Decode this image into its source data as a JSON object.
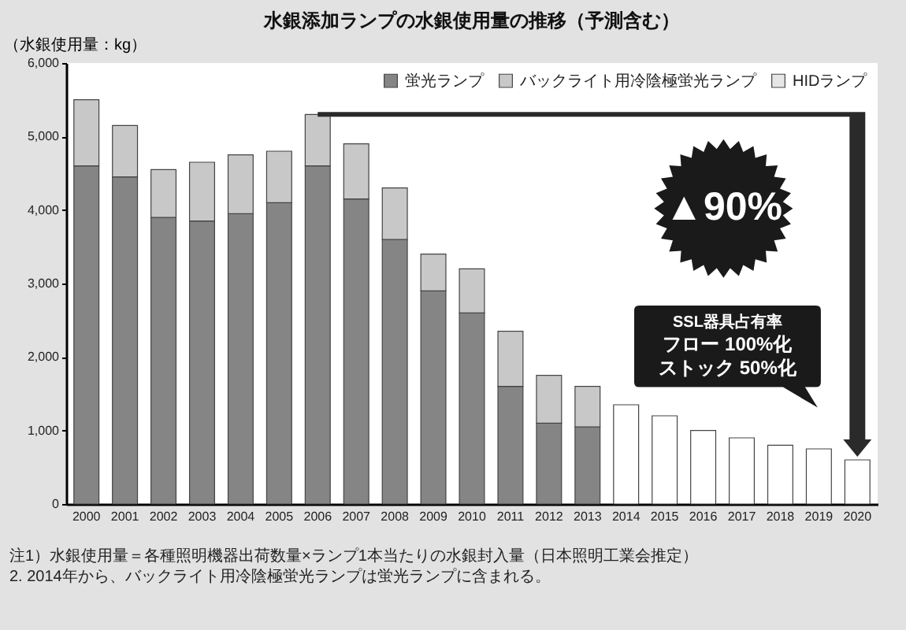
{
  "chart_data": {
    "type": "bar",
    "title": "水銀添加ランプの水銀使用量の推移（予測含む）",
    "ylabel": "（水銀使用量：kg）",
    "categories": [
      "2000",
      "2001",
      "2002",
      "2003",
      "2004",
      "2005",
      "2006",
      "2007",
      "2008",
      "2009",
      "2010",
      "2011",
      "2012",
      "2013",
      "2014",
      "2015",
      "2016",
      "2017",
      "2018",
      "2019",
      "2020"
    ],
    "stacked": true,
    "series": [
      {
        "name": "蛍光ランプ",
        "color": "#858585",
        "values": [
          4600,
          4450,
          3900,
          3850,
          3950,
          4100,
          4600,
          4150,
          3600,
          2900,
          2600,
          1600,
          1100,
          1050,
          null,
          null,
          null,
          null,
          null,
          null,
          null
        ]
      },
      {
        "name": "バックライト用冷陰極蛍光ランプ",
        "color": "#c8c8c8",
        "values": [
          900,
          700,
          650,
          800,
          800,
          700,
          700,
          750,
          700,
          500,
          600,
          750,
          650,
          550,
          null,
          null,
          null,
          null,
          null,
          null,
          null
        ]
      },
      {
        "name": "HIDランプ",
        "color": "#e6e6e6",
        "values": [
          null,
          null,
          null,
          null,
          null,
          null,
          null,
          null,
          null,
          null,
          null,
          null,
          null,
          null,
          null,
          null,
          null,
          null,
          null,
          null,
          null
        ]
      },
      {
        "color": "#ffffff",
        "values": [
          null,
          null,
          null,
          null,
          null,
          null,
          null,
          null,
          null,
          null,
          null,
          null,
          null,
          null,
          1350,
          1200,
          1000,
          900,
          800,
          750,
          600
        ]
      }
    ],
    "ylim": [
      0,
      6000
    ],
    "yticks": [
      {
        "value": 0,
        "label": "0"
      },
      {
        "value": 1000,
        "label": "1,000"
      },
      {
        "value": 2000,
        "label": "2,000"
      },
      {
        "value": 3000,
        "label": "3,000"
      },
      {
        "value": 4000,
        "label": "4,000"
      },
      {
        "value": 5000,
        "label": "5,000"
      },
      {
        "value": 6000,
        "label": "6,000"
      }
    ],
    "legend": "top right",
    "annotations": [
      "▲90%",
      "SSL器具占有率",
      "フロー 100%化",
      "ストック 50%化",
      "注1）水銀使用量＝各種照明機器出荷数量×ランプ1本当たりの水銀封入量（日本照明工業会推定）",
      "2. 2014年から、バックライト用冷陰極蛍光ランプは蛍光ランプに含まれる。"
    ]
  }
}
